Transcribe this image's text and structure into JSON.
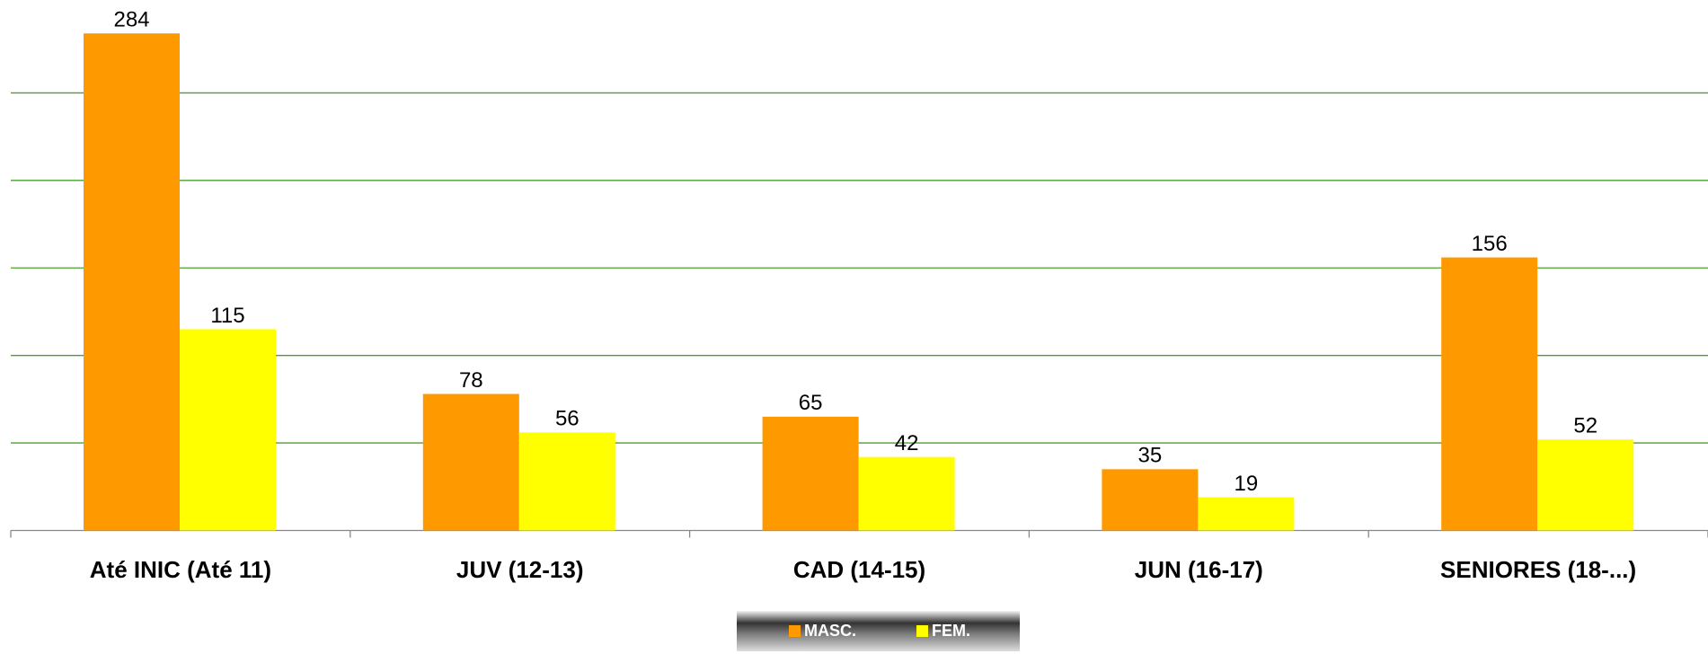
{
  "chart_data": {
    "type": "bar",
    "categories": [
      "Até INIC (Até 11)",
      "JUV (12-13)",
      "CAD (14-15)",
      "JUN (16-17)",
      "SENIORES (18-...)"
    ],
    "series": [
      {
        "name": "MASC.",
        "color": "#ff9900",
        "values": [
          284,
          78,
          65,
          35,
          156
        ]
      },
      {
        "name": "FEM.",
        "color": "#ffff00",
        "values": [
          115,
          56,
          42,
          19,
          52
        ]
      }
    ],
    "ylim": [
      0,
      300
    ],
    "yticks": [
      50,
      100,
      150,
      200,
      250
    ],
    "grid": true,
    "grid_color": "#4aa02c",
    "legend": "bottom"
  }
}
